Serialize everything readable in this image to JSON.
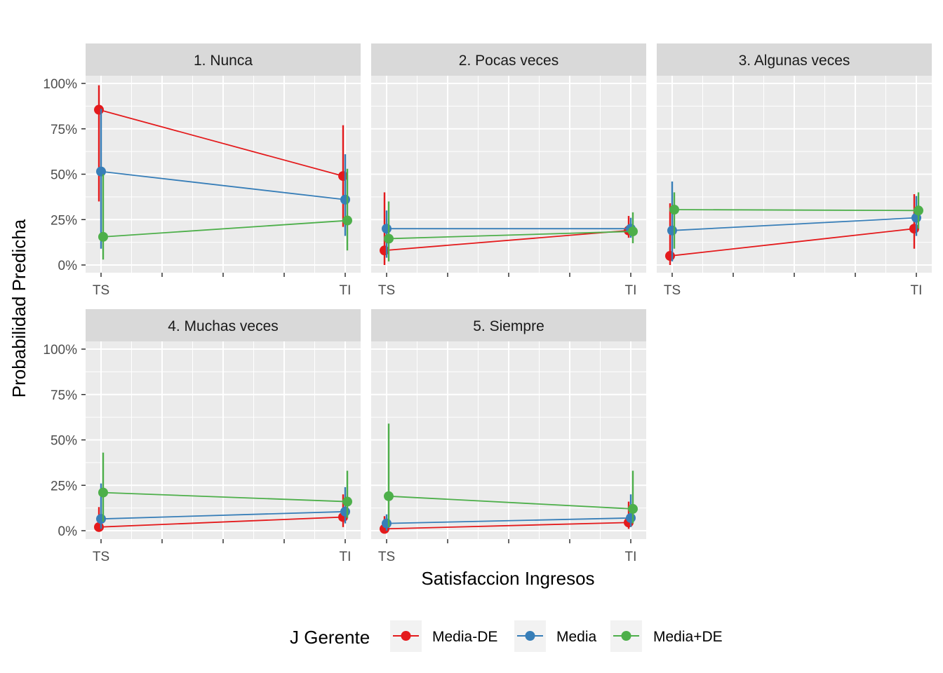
{
  "chart_data": {
    "type": "line",
    "facets": [
      "1. Nunca",
      "2. Pocas veces",
      "3. Algunas veces",
      "4. Muchas veces",
      "5. Siempre"
    ],
    "categories": [
      "TS",
      "TI"
    ],
    "xlabel": "Satisfaccion Ingresos",
    "ylabel": "Probabilidad Predicha",
    "ylim": [
      0,
      1
    ],
    "yticks": [
      0,
      0.25,
      0.5,
      0.75,
      1
    ],
    "ytick_labels": [
      "0%",
      "25%",
      "50%",
      "75%",
      "100%"
    ],
    "legend": {
      "title": "J Gerente",
      "position": "bottom",
      "entries": [
        "Media-DE",
        "Media",
        "Media+DE"
      ]
    },
    "colors": {
      "Media-DE": "#e41a1c",
      "Media": "#377eb8",
      "Media+DE": "#4daf4a"
    },
    "grid": true,
    "panels": [
      {
        "facet": "1. Nunca",
        "series": [
          {
            "name": "Media-DE",
            "values": [
              0.855,
              0.49
            ],
            "lower": [
              0.35,
              0.21
            ],
            "upper": [
              0.99,
              0.77
            ]
          },
          {
            "name": "Media",
            "values": [
              0.515,
              0.36
            ],
            "lower": [
              0.09,
              0.16
            ],
            "upper": [
              0.86,
              0.61
            ]
          },
          {
            "name": "Media+DE",
            "values": [
              0.155,
              0.245
            ],
            "lower": [
              0.03,
              0.08
            ],
            "upper": [
              0.5,
              0.53
            ]
          }
        ]
      },
      {
        "facet": "2. Pocas veces",
        "series": [
          {
            "name": "Media-DE",
            "values": [
              0.08,
              0.19
            ],
            "lower": [
              0.0,
              0.15
            ],
            "upper": [
              0.4,
              0.27
            ]
          },
          {
            "name": "Media",
            "values": [
              0.2,
              0.2
            ],
            "lower": [
              0.04,
              0.15
            ],
            "upper": [
              0.3,
              0.26
            ]
          },
          {
            "name": "Media+DE",
            "values": [
              0.145,
              0.185
            ],
            "lower": [
              0.02,
              0.12
            ],
            "upper": [
              0.35,
              0.29
            ]
          }
        ]
      },
      {
        "facet": "3. Algunas veces",
        "series": [
          {
            "name": "Media-DE",
            "values": [
              0.05,
              0.2
            ],
            "lower": [
              0.0,
              0.09
            ],
            "upper": [
              0.34,
              0.39
            ]
          },
          {
            "name": "Media",
            "values": [
              0.19,
              0.26
            ],
            "lower": [
              0.02,
              0.16
            ],
            "upper": [
              0.46,
              0.38
            ]
          },
          {
            "name": "Media+DE",
            "values": [
              0.305,
              0.3
            ],
            "lower": [
              0.09,
              0.2
            ],
            "upper": [
              0.4,
              0.4
            ]
          }
        ]
      },
      {
        "facet": "4. Muchas veces",
        "series": [
          {
            "name": "Media-DE",
            "values": [
              0.02,
              0.075
            ],
            "lower": [
              0.0,
              0.02
            ],
            "upper": [
              0.13,
              0.2
            ]
          },
          {
            "name": "Media",
            "values": [
              0.065,
              0.105
            ],
            "lower": [
              0.01,
              0.04
            ],
            "upper": [
              0.26,
              0.24
            ]
          },
          {
            "name": "Media+DE",
            "values": [
              0.21,
              0.16
            ],
            "lower": [
              0.05,
              0.07
            ],
            "upper": [
              0.43,
              0.33
            ]
          }
        ]
      },
      {
        "facet": "5. Siempre",
        "series": [
          {
            "name": "Media-DE",
            "values": [
              0.01,
              0.045
            ],
            "lower": [
              0.0,
              0.01
            ],
            "upper": [
              0.08,
              0.16
            ]
          },
          {
            "name": "Media",
            "values": [
              0.04,
              0.07
            ],
            "lower": [
              0.0,
              0.02
            ],
            "upper": [
              0.09,
              0.2
            ]
          },
          {
            "name": "Media+DE",
            "values": [
              0.19,
              0.12
            ],
            "lower": [
              0.02,
              0.04
            ],
            "upper": [
              0.59,
              0.33
            ]
          }
        ]
      }
    ]
  }
}
